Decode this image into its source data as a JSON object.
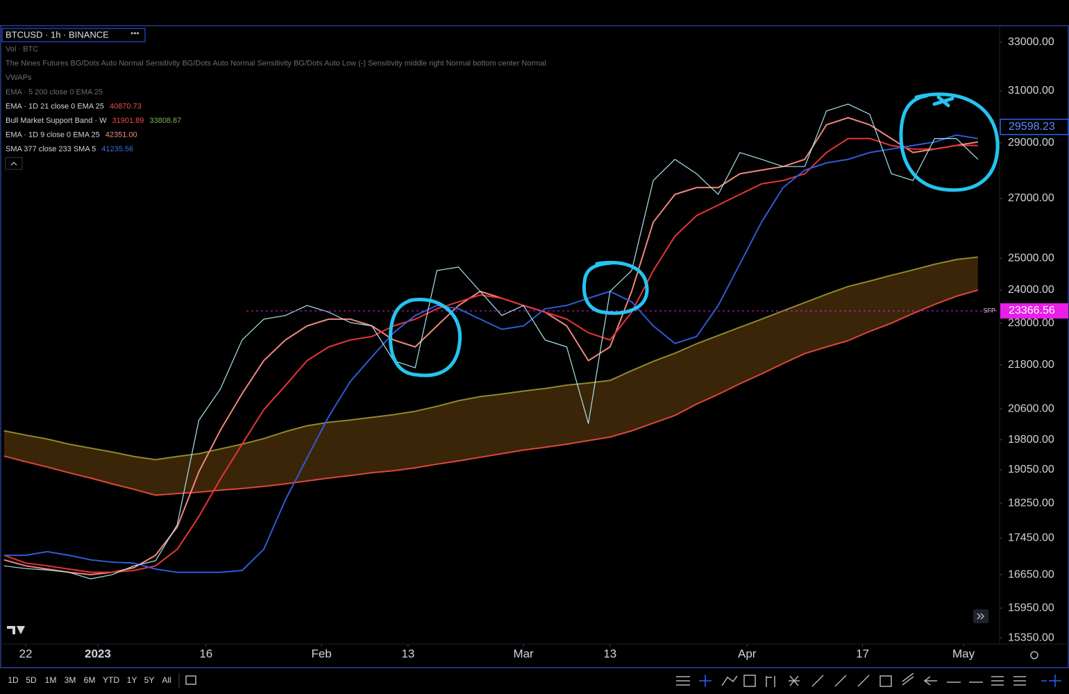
{
  "header": {
    "symbol": "BTCUSD · 1h · BINANCE"
  },
  "indicators": [
    {
      "name": "Vol · BTC"
    },
    {
      "name": "The Nines Futures BG/Dots Auto Normal Sensitivity BG/Dots Auto Normal Sensitivity BG/Dots Auto Low (-) Sensitivity middle right Normal bottom center Normal"
    },
    {
      "name": "VWAPs"
    },
    {
      "name": "EMA · 5 200 close 0 EMA 25"
    },
    {
      "name": "EMA · 1D 21 close 0 EMA 25",
      "values": [
        "40870.73"
      ],
      "value_colors": [
        "#f24c4c"
      ]
    },
    {
      "name": "Bull Market Support Band · W",
      "values": [
        "31901.89",
        "33808.87"
      ],
      "value_colors": [
        "#f24c4c",
        "#7bb35a"
      ]
    },
    {
      "name": "EMA · 1D 9 close 0 EMA 25",
      "values": [
        "42351.00"
      ],
      "value_colors": [
        "#f28b7d"
      ]
    },
    {
      "name": "SMA 377 close 233 SMA 5",
      "values": [
        "41235.56"
      ],
      "value_colors": [
        "#3d6ee0"
      ]
    }
  ],
  "chart_data": {
    "type": "line",
    "log": true,
    "grid": false,
    "x": [
      -3,
      0,
      3,
      6,
      9,
      12,
      15,
      18,
      21,
      24,
      27,
      30,
      33,
      36,
      39,
      42,
      45,
      48,
      51,
      54,
      57,
      60,
      63,
      66,
      69,
      72,
      75,
      78,
      81,
      84,
      87,
      90,
      93,
      96,
      99,
      102,
      105,
      108,
      111,
      114,
      117,
      120,
      123,
      126,
      129,
      132
    ],
    "xlim": [
      -3.56,
      135
    ],
    "xticks": [
      {
        "value": 0,
        "label": "22"
      },
      {
        "value": 10,
        "label": "2023"
      },
      {
        "value": 25,
        "label": "16"
      },
      {
        "value": 41,
        "label": "Feb"
      },
      {
        "value": 53,
        "label": "13"
      },
      {
        "value": 69,
        "label": "Mar"
      },
      {
        "value": 81,
        "label": "13"
      },
      {
        "value": 100,
        "label": "Apr"
      },
      {
        "value": 116,
        "label": "17"
      },
      {
        "value": 130,
        "label": "May"
      }
    ],
    "ylim": [
      15230,
      33680
    ],
    "yticks": [
      {
        "value": 33000,
        "label": "33000.00"
      },
      {
        "value": 31000,
        "label": "31000.00"
      },
      {
        "value": 29000,
        "label": "29000.00"
      },
      {
        "value": 27000,
        "label": "27000.00"
      },
      {
        "value": 25000,
        "label": "25000.00"
      },
      {
        "value": 24000,
        "label": "24000.00"
      },
      {
        "value": 23000,
        "label": "23000.00"
      },
      {
        "value": 21800,
        "label": "21800.00"
      },
      {
        "value": 20600,
        "label": "20600.00"
      },
      {
        "value": 19800,
        "label": "19800.00"
      },
      {
        "value": 19050,
        "label": "19050.00"
      },
      {
        "value": 18250,
        "label": "18250.00"
      },
      {
        "value": 17450,
        "label": "17450.00"
      },
      {
        "value": 16650,
        "label": "16650.00"
      },
      {
        "value": 15950,
        "label": "15950.00"
      },
      {
        "value": 15350,
        "label": "15350.00"
      }
    ],
    "series": [
      {
        "color": "#a8e6ef",
        "values": [
          16840,
          16780,
          16750,
          16700,
          16560,
          16650,
          16840,
          16950,
          17750,
          20300,
          21140,
          22510,
          23120,
          23230,
          23530,
          23330,
          23020,
          22920,
          21920,
          21720,
          24610,
          24720,
          23960,
          23230,
          23530,
          22510,
          22310,
          20220,
          23960,
          24610,
          27630,
          28390,
          27870,
          27140,
          28640,
          28390,
          28130,
          28130,
          30210,
          30480,
          30080,
          27870,
          27630,
          29160,
          29160,
          28390
        ]
      },
      {
        "color": "#2f5bd6",
        "values": [
          17070,
          17070,
          17150,
          17070,
          16970,
          16920,
          16900,
          16770,
          16700,
          16700,
          16700,
          16740,
          17200,
          18330,
          19340,
          20400,
          21340,
          22030,
          22720,
          23230,
          23530,
          23430,
          23120,
          22820,
          22920,
          23430,
          23530,
          23750,
          23960,
          23640,
          22920,
          22410,
          22610,
          23530,
          24820,
          26190,
          27380,
          28000,
          28260,
          28390,
          28640,
          28770,
          28900,
          29030,
          29290,
          29160
        ]
      },
      {
        "color": "#e8343a",
        "values": [
          17070,
          16900,
          16840,
          16770,
          16700,
          16700,
          16740,
          16840,
          17200,
          17940,
          18830,
          19690,
          20580,
          21230,
          21920,
          22310,
          22510,
          22610,
          22920,
          23120,
          23430,
          23640,
          23850,
          23750,
          23530,
          23330,
          23120,
          22720,
          22510,
          23330,
          24610,
          25720,
          26410,
          26770,
          27140,
          27510,
          27630,
          27870,
          28640,
          29160,
          29160,
          28900,
          28770,
          28770,
          28900,
          28900
        ]
      },
      {
        "color": "#f2877d",
        "values": [
          16970,
          16840,
          16770,
          16700,
          16650,
          16700,
          16800,
          17070,
          17700,
          19000,
          20050,
          21010,
          21920,
          22510,
          22920,
          23120,
          23120,
          22920,
          22510,
          22310,
          22920,
          23530,
          23960,
          23750,
          23530,
          23330,
          22920,
          21920,
          22310,
          23960,
          26190,
          27140,
          27380,
          27380,
          27870,
          28000,
          28130,
          28390,
          29680,
          29950,
          29680,
          29160,
          28640,
          28770,
          28900,
          29030
        ]
      },
      {
        "color": "#8f8a2c",
        "values": [
          20030,
          19920,
          19820,
          19690,
          19590,
          19490,
          19380,
          19300,
          19380,
          19450,
          19570,
          19690,
          19830,
          20010,
          20160,
          20250,
          20310,
          20380,
          20450,
          20540,
          20670,
          20820,
          20930,
          21000,
          21080,
          21150,
          21240,
          21300,
          21370,
          21640,
          21900,
          22130,
          22400,
          22640,
          22880,
          23120,
          23370,
          23620,
          23870,
          24110,
          24280,
          24460,
          24630,
          24810,
          24960,
          25040
        ]
      },
      {
        "color": "#e0473c",
        "values": [
          19390,
          19250,
          19120,
          18980,
          18850,
          18710,
          18580,
          18440,
          18480,
          18510,
          18560,
          18600,
          18650,
          18710,
          18780,
          18850,
          18910,
          18980,
          19030,
          19100,
          19190,
          19270,
          19360,
          19450,
          19540,
          19610,
          19690,
          19780,
          19870,
          20030,
          20230,
          20430,
          20730,
          20990,
          21280,
          21550,
          21840,
          22120,
          22310,
          22490,
          22760,
          23000,
          23290,
          23560,
          23810,
          24000
        ]
      }
    ],
    "band_fill": "#3b2508",
    "last_price": {
      "value": 29598.23,
      "label": "29598.23"
    },
    "hline": {
      "value": 23366.56,
      "label": "23366.56",
      "tag": "SFP",
      "color": "#e91ee9"
    }
  },
  "timeframes": [
    "1D",
    "5D",
    "1M",
    "3M",
    "6M",
    "YTD",
    "1Y",
    "5Y",
    "All"
  ]
}
